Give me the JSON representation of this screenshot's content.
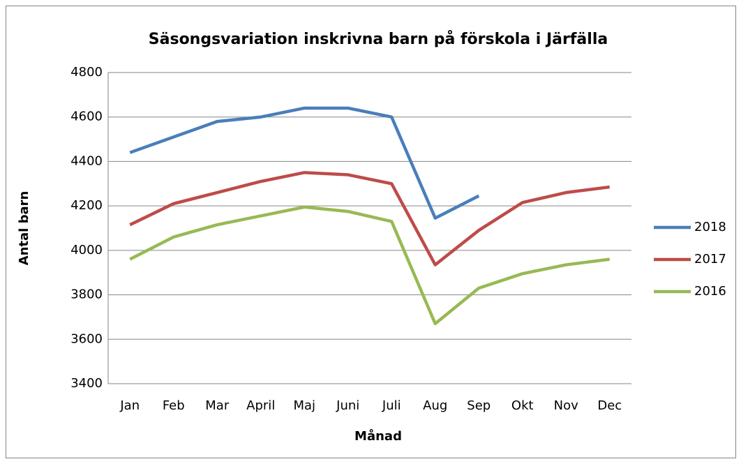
{
  "chart_data": {
    "type": "line",
    "title": "Säsongsvariation inskrivna barn på förskola i Järfälla",
    "x_label": "Månad",
    "y_label": "Antal barn",
    "categories": [
      "Jan",
      "Feb",
      "Mar",
      "April",
      "Maj",
      "Juni",
      "Juli",
      "Aug",
      "Sep",
      "Okt",
      "Nov",
      "Dec"
    ],
    "series": [
      {
        "name": "2018",
        "color": "#4a7ebb",
        "values": [
          4440,
          4510,
          4580,
          4600,
          4640,
          4640,
          4600,
          4145,
          4245,
          null,
          null,
          null
        ]
      },
      {
        "name": "2017",
        "color": "#be4b48",
        "values": [
          4115,
          4210,
          4260,
          4310,
          4350,
          4340,
          4300,
          3935,
          4090,
          4215,
          4260,
          4285
        ]
      },
      {
        "name": "2016",
        "color": "#98b954",
        "values": [
          3960,
          4060,
          4115,
          4155,
          4195,
          4175,
          4130,
          3670,
          3830,
          3895,
          3935,
          3960
        ]
      }
    ],
    "ylim": [
      3400,
      4800
    ],
    "yticks": [
      3400,
      3600,
      3800,
      4000,
      4200,
      4400,
      4600,
      4800
    ],
    "grid": true,
    "legend": "right"
  }
}
